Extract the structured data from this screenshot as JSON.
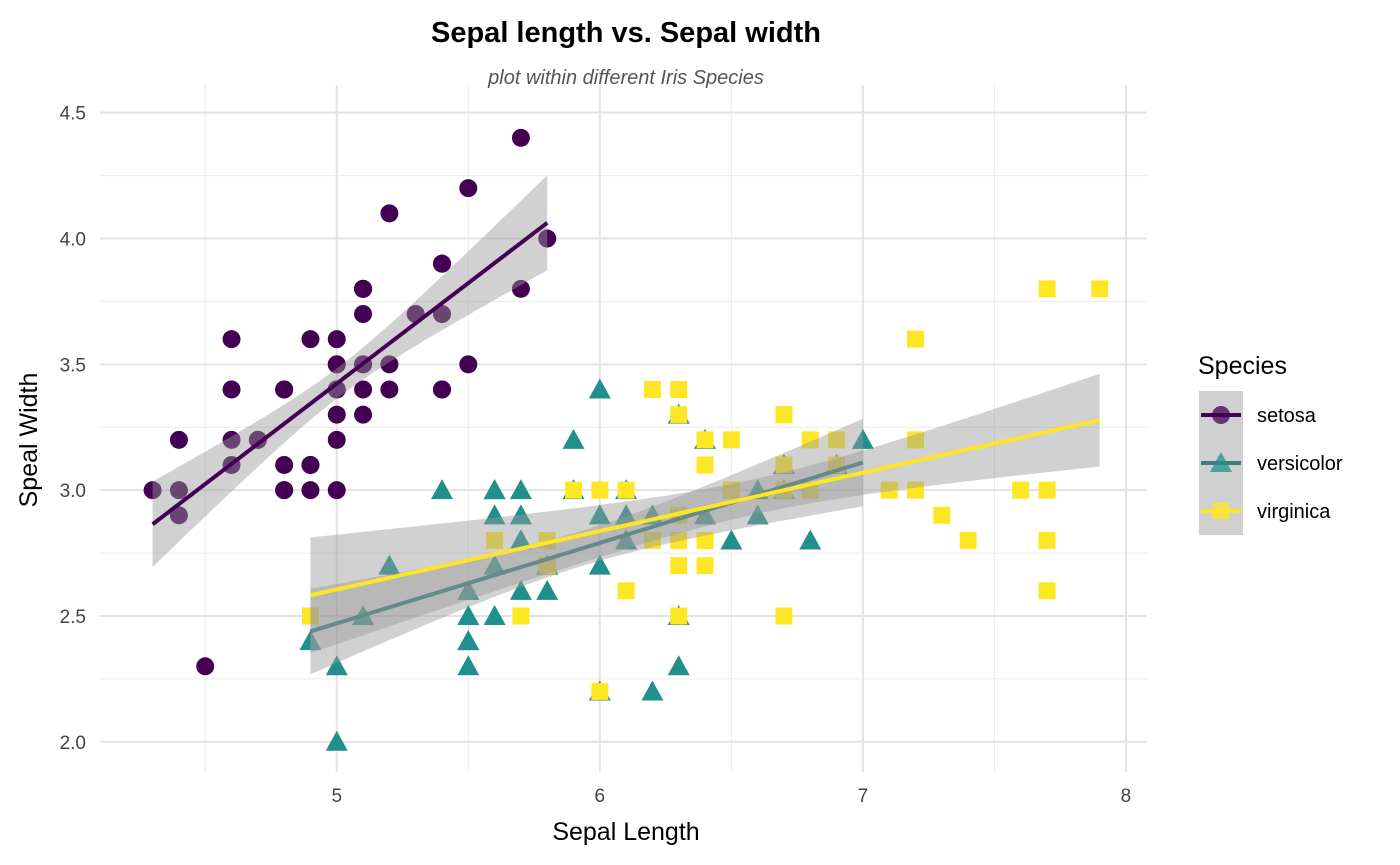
{
  "chart_data": {
    "type": "scatter",
    "title": "Sepal length vs. Sepal width",
    "subtitle": "plot within different Iris Species",
    "xlabel": "Sepal Length",
    "ylabel": "Speal Width",
    "xlim": [
      4.1,
      8.08
    ],
    "ylim": [
      1.88,
      4.61
    ],
    "xticks": [
      5,
      6,
      7,
      8
    ],
    "xtick_labels": [
      "5",
      "6",
      "7",
      "8"
    ],
    "yticks": [
      2.0,
      2.5,
      3.0,
      3.5,
      4.0,
      4.5
    ],
    "ytick_labels": [
      "2.0",
      "2.5",
      "3.0",
      "3.5",
      "4.0",
      "4.5"
    ],
    "grid": true,
    "legend": {
      "title": "Species",
      "placement": "right"
    },
    "series": [
      {
        "name": "setosa",
        "color": "#440154",
        "line_color": "#440154",
        "shape": "circle",
        "fit": {
          "slope": 0.7985,
          "intercept": -0.569,
          "x_range": [
            4.3,
            5.8
          ],
          "ci_a": 0.0036,
          "ci_b": 0.0508,
          "x_mean": 5.006
        },
        "points": [
          [
            5.1,
            3.5
          ],
          [
            4.9,
            3.0
          ],
          [
            4.7,
            3.2
          ],
          [
            4.6,
            3.1
          ],
          [
            5.0,
            3.6
          ],
          [
            5.4,
            3.9
          ],
          [
            4.6,
            3.4
          ],
          [
            5.0,
            3.4
          ],
          [
            4.4,
            2.9
          ],
          [
            4.9,
            3.1
          ],
          [
            5.4,
            3.7
          ],
          [
            4.8,
            3.4
          ],
          [
            4.8,
            3.0
          ],
          [
            4.3,
            3.0
          ],
          [
            5.8,
            4.0
          ],
          [
            5.7,
            4.4
          ],
          [
            5.4,
            3.9
          ],
          [
            5.1,
            3.5
          ],
          [
            5.7,
            3.8
          ],
          [
            5.1,
            3.8
          ],
          [
            5.4,
            3.4
          ],
          [
            5.1,
            3.7
          ],
          [
            4.6,
            3.6
          ],
          [
            5.1,
            3.3
          ],
          [
            4.8,
            3.4
          ],
          [
            5.0,
            3.0
          ],
          [
            5.0,
            3.4
          ],
          [
            5.2,
            3.5
          ],
          [
            5.2,
            3.4
          ],
          [
            4.7,
            3.2
          ],
          [
            4.8,
            3.1
          ],
          [
            5.4,
            3.4
          ],
          [
            5.2,
            4.1
          ],
          [
            5.5,
            4.2
          ],
          [
            4.9,
            3.1
          ],
          [
            5.0,
            3.2
          ],
          [
            5.5,
            3.5
          ],
          [
            4.9,
            3.6
          ],
          [
            4.4,
            3.0
          ],
          [
            5.1,
            3.4
          ],
          [
            5.0,
            3.5
          ],
          [
            4.5,
            2.3
          ],
          [
            4.4,
            3.2
          ],
          [
            5.0,
            3.5
          ],
          [
            5.1,
            3.8
          ],
          [
            4.8,
            3.0
          ],
          [
            5.1,
            3.8
          ],
          [
            4.6,
            3.2
          ],
          [
            5.3,
            3.7
          ],
          [
            5.0,
            3.3
          ]
        ]
      },
      {
        "name": "versicolor",
        "color": "#21908C",
        "line_color": "#3A7F7C",
        "shape": "triangle",
        "fit": {
          "slope": 0.3197,
          "intercept": 0.872,
          "x_range": [
            4.9,
            7.0
          ],
          "ci_a": 0.0049,
          "ci_b": 0.0224,
          "x_mean": 5.936
        },
        "points": [
          [
            7.0,
            3.2
          ],
          [
            6.4,
            3.2
          ],
          [
            6.9,
            3.1
          ],
          [
            5.5,
            2.3
          ],
          [
            6.5,
            2.8
          ],
          [
            5.7,
            2.8
          ],
          [
            6.3,
            3.3
          ],
          [
            4.9,
            2.4
          ],
          [
            6.6,
            2.9
          ],
          [
            5.2,
            2.7
          ],
          [
            5.0,
            2.0
          ],
          [
            5.9,
            3.0
          ],
          [
            6.0,
            2.2
          ],
          [
            6.1,
            2.9
          ],
          [
            5.6,
            2.9
          ],
          [
            6.7,
            3.1
          ],
          [
            5.6,
            3.0
          ],
          [
            5.8,
            2.7
          ],
          [
            6.2,
            2.2
          ],
          [
            5.6,
            2.5
          ],
          [
            5.9,
            3.2
          ],
          [
            6.1,
            2.8
          ],
          [
            6.3,
            2.5
          ],
          [
            6.1,
            2.8
          ],
          [
            6.4,
            2.9
          ],
          [
            6.6,
            3.0
          ],
          [
            6.8,
            2.8
          ],
          [
            6.7,
            3.0
          ],
          [
            6.0,
            2.9
          ],
          [
            5.7,
            2.6
          ],
          [
            5.5,
            2.4
          ],
          [
            5.5,
            2.4
          ],
          [
            5.8,
            2.7
          ],
          [
            6.0,
            2.7
          ],
          [
            5.4,
            3.0
          ],
          [
            6.0,
            3.4
          ],
          [
            6.7,
            3.1
          ],
          [
            6.3,
            2.3
          ],
          [
            5.6,
            3.0
          ],
          [
            5.5,
            2.5
          ],
          [
            5.5,
            2.6
          ],
          [
            6.1,
            3.0
          ],
          [
            5.8,
            2.6
          ],
          [
            5.0,
            2.3
          ],
          [
            5.6,
            2.7
          ],
          [
            5.7,
            3.0
          ],
          [
            5.7,
            2.9
          ],
          [
            6.2,
            2.9
          ],
          [
            5.1,
            2.5
          ],
          [
            5.7,
            2.8
          ]
        ]
      },
      {
        "name": "virginica",
        "color": "#FDE725",
        "line_color": "#FDE725",
        "shape": "square",
        "fit": {
          "slope": 0.2319,
          "intercept": 1.446,
          "x_range": [
            4.9,
            7.9
          ],
          "ci_a": 0.0049,
          "ci_b": 0.01684,
          "x_mean": 6.588
        },
        "points": [
          [
            6.3,
            3.3
          ],
          [
            5.8,
            2.7
          ],
          [
            7.1,
            3.0
          ],
          [
            6.3,
            2.9
          ],
          [
            6.5,
            3.0
          ],
          [
            7.6,
            3.0
          ],
          [
            4.9,
            2.5
          ],
          [
            7.3,
            2.9
          ],
          [
            6.7,
            2.5
          ],
          [
            7.2,
            3.6
          ],
          [
            6.5,
            3.2
          ],
          [
            6.4,
            2.7
          ],
          [
            6.8,
            3.0
          ],
          [
            5.7,
            2.5
          ],
          [
            5.8,
            2.8
          ],
          [
            6.4,
            3.2
          ],
          [
            6.5,
            3.0
          ],
          [
            7.7,
            3.8
          ],
          [
            7.7,
            2.6
          ],
          [
            6.0,
            2.2
          ],
          [
            6.9,
            3.2
          ],
          [
            5.6,
            2.8
          ],
          [
            7.7,
            2.8
          ],
          [
            6.3,
            2.7
          ],
          [
            6.7,
            3.3
          ],
          [
            7.2,
            3.2
          ],
          [
            6.2,
            2.8
          ],
          [
            6.1,
            3.0
          ],
          [
            6.4,
            2.8
          ],
          [
            7.2,
            3.0
          ],
          [
            7.4,
            2.8
          ],
          [
            7.9,
            3.8
          ],
          [
            6.4,
            2.8
          ],
          [
            6.3,
            2.8
          ],
          [
            6.1,
            2.6
          ],
          [
            7.7,
            3.0
          ],
          [
            6.3,
            3.4
          ],
          [
            6.4,
            3.1
          ],
          [
            6.0,
            3.0
          ],
          [
            6.9,
            3.1
          ],
          [
            6.7,
            3.1
          ],
          [
            6.9,
            3.1
          ],
          [
            5.8,
            2.7
          ],
          [
            6.8,
            3.2
          ],
          [
            6.7,
            3.3
          ],
          [
            6.7,
            3.0
          ],
          [
            6.3,
            2.5
          ],
          [
            6.5,
            3.0
          ],
          [
            6.2,
            3.4
          ],
          [
            5.9,
            3.0
          ]
        ]
      }
    ]
  }
}
